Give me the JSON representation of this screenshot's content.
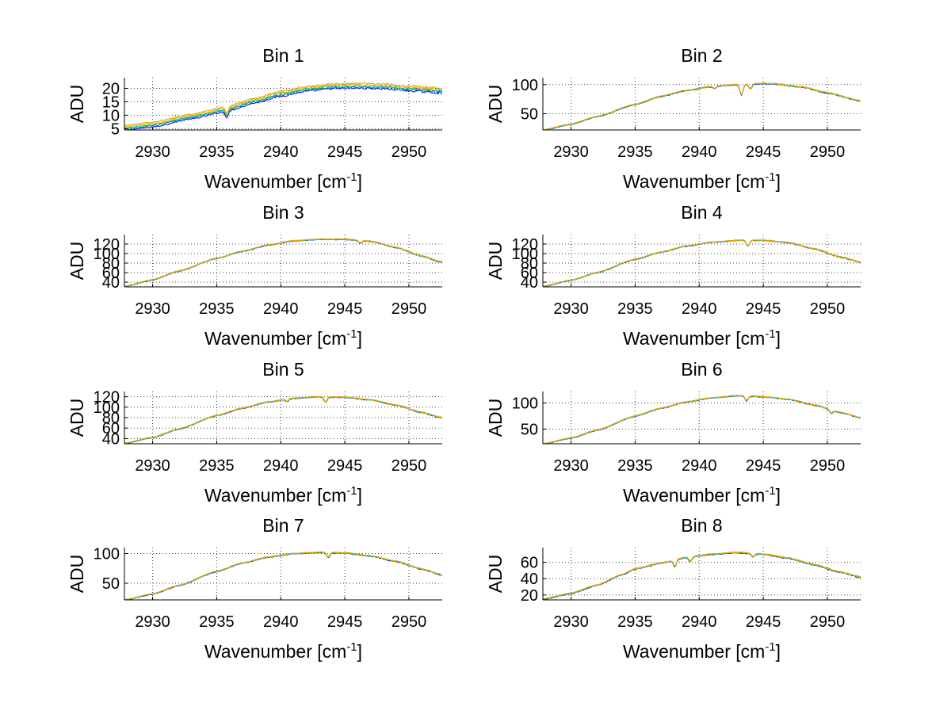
{
  "figure": {
    "xlabel": "Wavenumber [cm",
    "xlabel_sup": "-1",
    "xlabel_end": "]",
    "ylabel": "ADU"
  },
  "chart_data": [
    {
      "type": "line",
      "title": "Bin 1",
      "xlim": [
        2927.8,
        2952.6
      ],
      "ylim": [
        4.5,
        24
      ],
      "xticks": [
        2930,
        2935,
        2940,
        2945,
        2950
      ],
      "yticks": [
        5,
        10,
        15,
        20
      ],
      "grid": true,
      "series_colors": [
        "#0000ff",
        "#008c4b",
        "#00bfbf",
        "#e6b800",
        "#e6a000"
      ],
      "series_offsets": [
        -0.9,
        -0.4,
        0,
        0.4,
        0.9
      ],
      "profile": [
        [
          2927.8,
          5.3
        ],
        [
          2930,
          6.5
        ],
        [
          2933,
          9.5
        ],
        [
          2935.5,
          12
        ],
        [
          2936,
          12.7
        ],
        [
          2938,
          15.5
        ],
        [
          2940,
          18
        ],
        [
          2942,
          19.8
        ],
        [
          2944,
          20.8
        ],
        [
          2946,
          21
        ],
        [
          2948,
          20.8
        ],
        [
          2950,
          20
        ],
        [
          2952.6,
          19.2
        ]
      ],
      "dips": [
        [
          2935.8,
          -2.5
        ]
      ],
      "noise": 0.6
    },
    {
      "type": "line",
      "title": "Bin 2",
      "xlim": [
        2927.8,
        2952.6
      ],
      "ylim": [
        22,
        112
      ],
      "xticks": [
        2930,
        2935,
        2940,
        2945,
        2950
      ],
      "yticks": [
        50,
        100
      ],
      "grid": true,
      "series_colors": [
        "#0000ff",
        "#008c4b",
        "#00bfbf",
        "#e6b800",
        "#e6a000"
      ],
      "series_offsets": [
        -0.6,
        -0.3,
        0,
        0.3,
        0.6
      ],
      "profile": [
        [
          2927.8,
          22
        ],
        [
          2930,
          32
        ],
        [
          2932,
          45
        ],
        [
          2935,
          66
        ],
        [
          2937,
          80
        ],
        [
          2939,
          90
        ],
        [
          2941,
          97
        ],
        [
          2943,
          100
        ],
        [
          2945,
          102
        ],
        [
          2946,
          101
        ],
        [
          2948,
          96
        ],
        [
          2950,
          86
        ],
        [
          2952.6,
          72
        ]
      ],
      "dips": [
        [
          2943.3,
          -18
        ],
        [
          2944,
          -8
        ],
        [
          2941.2,
          -4
        ]
      ],
      "noise": 1.2
    },
    {
      "type": "line",
      "title": "Bin 3",
      "xlim": [
        2927.8,
        2952.6
      ],
      "ylim": [
        30,
        140
      ],
      "xticks": [
        2930,
        2935,
        2940,
        2945,
        2950
      ],
      "yticks": [
        40,
        60,
        80,
        100,
        120
      ],
      "grid": true,
      "series_colors": [
        "#0000ff",
        "#008c4b",
        "#00bfbf",
        "#e6b800",
        "#e6a000"
      ],
      "series_offsets": [
        -0.6,
        -0.3,
        0,
        0.3,
        0.6
      ],
      "profile": [
        [
          2927.8,
          31
        ],
        [
          2930,
          45
        ],
        [
          2932,
          63
        ],
        [
          2935,
          90
        ],
        [
          2937,
          105
        ],
        [
          2939,
          118
        ],
        [
          2941,
          127
        ],
        [
          2943,
          130
        ],
        [
          2945,
          130
        ],
        [
          2947,
          126
        ],
        [
          2949,
          113
        ],
        [
          2951,
          95
        ],
        [
          2952.6,
          82
        ]
      ],
      "dips": [
        [
          2946.2,
          -5
        ]
      ],
      "noise": 1.4
    },
    {
      "type": "line",
      "title": "Bin 4",
      "xlim": [
        2927.8,
        2952.6
      ],
      "ylim": [
        30,
        140
      ],
      "xticks": [
        2930,
        2935,
        2940,
        2945,
        2950
      ],
      "yticks": [
        40,
        60,
        80,
        100,
        120
      ],
      "grid": true,
      "series_colors": [
        "#0000ff",
        "#008c4b",
        "#00bfbf",
        "#e6b800",
        "#e6a000"
      ],
      "series_offsets": [
        -0.6,
        -0.3,
        0,
        0.3,
        0.6
      ],
      "profile": [
        [
          2927.8,
          31
        ],
        [
          2930,
          44
        ],
        [
          2932,
          60
        ],
        [
          2935,
          88
        ],
        [
          2937,
          103
        ],
        [
          2939,
          116
        ],
        [
          2941,
          124
        ],
        [
          2943,
          128
        ],
        [
          2945,
          128
        ],
        [
          2947,
          123
        ],
        [
          2949,
          110
        ],
        [
          2951,
          93
        ],
        [
          2952.6,
          82
        ]
      ],
      "dips": [
        [
          2943.8,
          -12
        ]
      ],
      "noise": 1.4
    },
    {
      "type": "line",
      "title": "Bin 5",
      "xlim": [
        2927.8,
        2952.6
      ],
      "ylim": [
        30,
        130
      ],
      "xticks": [
        2930,
        2935,
        2940,
        2945,
        2950
      ],
      "yticks": [
        40,
        60,
        80,
        100,
        120
      ],
      "grid": true,
      "series_colors": [
        "#0000ff",
        "#008c4b",
        "#00bfbf",
        "#e6b800",
        "#e6a000"
      ],
      "series_offsets": [
        -0.6,
        -0.3,
        0,
        0.3,
        0.6
      ],
      "profile": [
        [
          2927.8,
          31
        ],
        [
          2930,
          42
        ],
        [
          2932,
          58
        ],
        [
          2935,
          84
        ],
        [
          2937,
          98
        ],
        [
          2939,
          110
        ],
        [
          2941,
          117
        ],
        [
          2943,
          120
        ],
        [
          2945,
          119
        ],
        [
          2947,
          114
        ],
        [
          2949,
          104
        ],
        [
          2951,
          90
        ],
        [
          2952.6,
          80
        ]
      ],
      "dips": [
        [
          2943.5,
          -10
        ],
        [
          2940.5,
          -5
        ]
      ],
      "noise": 1.4
    },
    {
      "type": "line",
      "title": "Bin 6",
      "xlim": [
        2927.8,
        2952.6
      ],
      "ylim": [
        22,
        122
      ],
      "xticks": [
        2930,
        2935,
        2940,
        2945,
        2950
      ],
      "yticks": [
        50,
        100
      ],
      "grid": true,
      "series_colors": [
        "#0000ff",
        "#008c4b",
        "#00bfbf",
        "#e6b800",
        "#e6a000"
      ],
      "series_offsets": [
        -0.6,
        -0.3,
        0,
        0.3,
        0.6
      ],
      "profile": [
        [
          2927.8,
          22
        ],
        [
          2930,
          33
        ],
        [
          2932,
          48
        ],
        [
          2935,
          75
        ],
        [
          2937,
          90
        ],
        [
          2939,
          102
        ],
        [
          2941,
          110
        ],
        [
          2943,
          114
        ],
        [
          2945,
          112
        ],
        [
          2947,
          107
        ],
        [
          2949,
          96
        ],
        [
          2951,
          82
        ],
        [
          2952.6,
          72
        ]
      ],
      "dips": [
        [
          2943.7,
          -9
        ],
        [
          2950.3,
          -6
        ]
      ],
      "noise": 1.3
    },
    {
      "type": "line",
      "title": "Bin 7",
      "xlim": [
        2927.8,
        2952.6
      ],
      "ylim": [
        22,
        110
      ],
      "xticks": [
        2930,
        2935,
        2940,
        2945,
        2950
      ],
      "yticks": [
        50,
        100
      ],
      "grid": true,
      "series_colors": [
        "#0000ff",
        "#008c4b",
        "#00bfbf",
        "#e6b800",
        "#e6a000"
      ],
      "series_offsets": [
        -0.6,
        -0.3,
        0,
        0.3,
        0.6
      ],
      "profile": [
        [
          2927.8,
          22
        ],
        [
          2930,
          32
        ],
        [
          2932,
          46
        ],
        [
          2935,
          70
        ],
        [
          2937,
          84
        ],
        [
          2939,
          94
        ],
        [
          2941,
          100
        ],
        [
          2943,
          102
        ],
        [
          2945,
          101
        ],
        [
          2947,
          96
        ],
        [
          2949,
          87
        ],
        [
          2951,
          74
        ],
        [
          2952.6,
          64
        ]
      ],
      "dips": [
        [
          2943.7,
          -8
        ]
      ],
      "noise": 1.2
    },
    {
      "type": "line",
      "title": "Bin 8",
      "xlim": [
        2927.8,
        2952.6
      ],
      "ylim": [
        14,
        78
      ],
      "xticks": [
        2930,
        2935,
        2940,
        2945,
        2950
      ],
      "yticks": [
        20,
        40,
        60
      ],
      "grid": true,
      "series_colors": [
        "#0000ff",
        "#008c4b",
        "#00bfbf",
        "#e6b800",
        "#e6a000"
      ],
      "series_offsets": [
        -0.5,
        -0.25,
        0,
        0.25,
        0.5
      ],
      "profile": [
        [
          2927.8,
          15
        ],
        [
          2930,
          22
        ],
        [
          2932,
          32
        ],
        [
          2934,
          45
        ],
        [
          2935,
          52
        ],
        [
          2937,
          59
        ],
        [
          2939,
          66
        ],
        [
          2941,
          70
        ],
        [
          2943,
          72
        ],
        [
          2945,
          70
        ],
        [
          2947,
          65
        ],
        [
          2949,
          57
        ],
        [
          2951,
          48
        ],
        [
          2952.6,
          42
        ]
      ],
      "dips": [
        [
          2938.1,
          -8
        ],
        [
          2939.3,
          -5
        ],
        [
          2944.2,
          -4
        ]
      ],
      "noise": 1.1
    }
  ]
}
